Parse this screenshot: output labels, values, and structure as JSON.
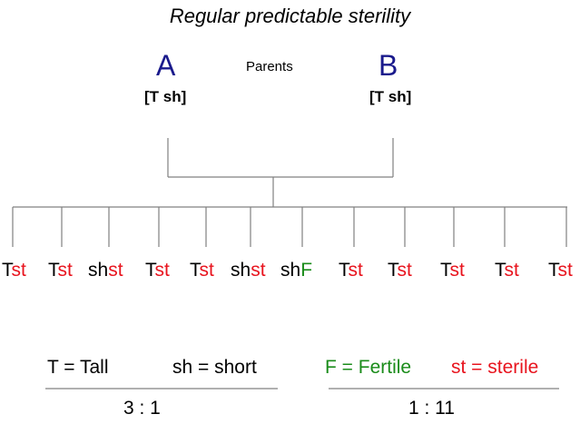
{
  "title": "Regular predictable sterility",
  "parents_label": "Parents",
  "parent_a": {
    "name": "A",
    "genotype": "[T sh]"
  },
  "parent_b": {
    "name": "B",
    "genotype": "[T sh]"
  },
  "offspring": [
    {
      "prefix": "T",
      "suffix": "st"
    },
    {
      "prefix": "T",
      "suffix": "st"
    },
    {
      "prefix": "sh",
      "suffix": "st"
    },
    {
      "prefix": "T",
      "suffix": "st"
    },
    {
      "prefix": "T",
      "suffix": "st"
    },
    {
      "prefix": "sh",
      "suffix": "st"
    },
    {
      "prefix": "sh",
      "suffix": "F"
    },
    {
      "prefix": "T",
      "suffix": "st"
    },
    {
      "prefix": "T",
      "suffix": "st"
    },
    {
      "prefix": "T",
      "suffix": "st"
    },
    {
      "prefix": "T",
      "suffix": "st"
    },
    {
      "prefix": "T",
      "suffix": "st"
    }
  ],
  "legend": {
    "tall": "T = Tall",
    "short": "sh = short",
    "fertile": "F = Fertile",
    "sterile": "st = sterile"
  },
  "ratios": {
    "height": "3 : 1",
    "fertility": "1 : 11"
  },
  "colors": {
    "parent": "#1a1a8c",
    "sterile": "#e8141e",
    "fertile": "#1a8c1a",
    "lines": "#808080"
  }
}
